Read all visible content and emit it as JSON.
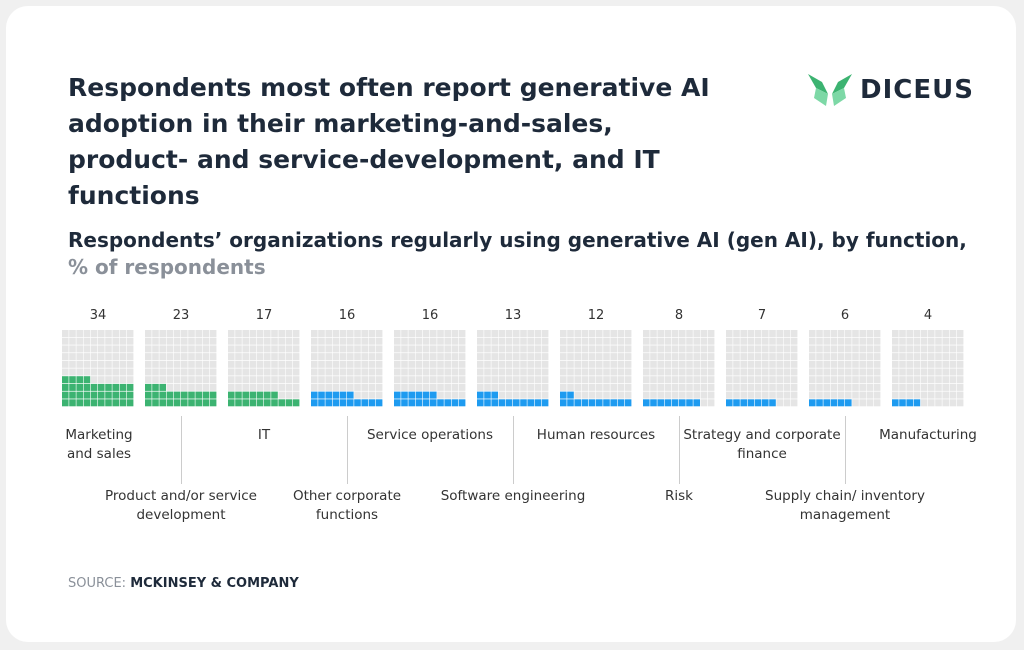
{
  "title": "Respondents most often report generative AI adoption in their marketing-and-sales, product- and service-development, and IT functions",
  "logo": "DICEUS",
  "source_label": "SOURCE:",
  "source_name": "MCKINSEY & COMPANY",
  "colors": {
    "green": "#3cb371",
    "blue": "#1e9bf0",
    "empty": "#e5e5e5"
  },
  "chart_data": {
    "type": "waffle",
    "subtitle": "Respondents’ organizations regularly using generative AI (gen AI), by function,",
    "unit": "% of respondents",
    "categories": [
      "Marketing and sales",
      "Product and/or service development",
      "IT",
      "Other corporate functions",
      "Service operations",
      "Software engineering",
      "Human resources",
      "Risk",
      "Strategy and corporate finance",
      "Supply chain/ inventory management",
      "Manufacturing"
    ],
    "values": [
      34,
      23,
      17,
      16,
      16,
      13,
      12,
      8,
      7,
      6,
      4
    ],
    "series_colors": [
      "green",
      "green",
      "green",
      "blue",
      "blue",
      "blue",
      "blue",
      "blue",
      "blue",
      "blue",
      "blue"
    ]
  }
}
